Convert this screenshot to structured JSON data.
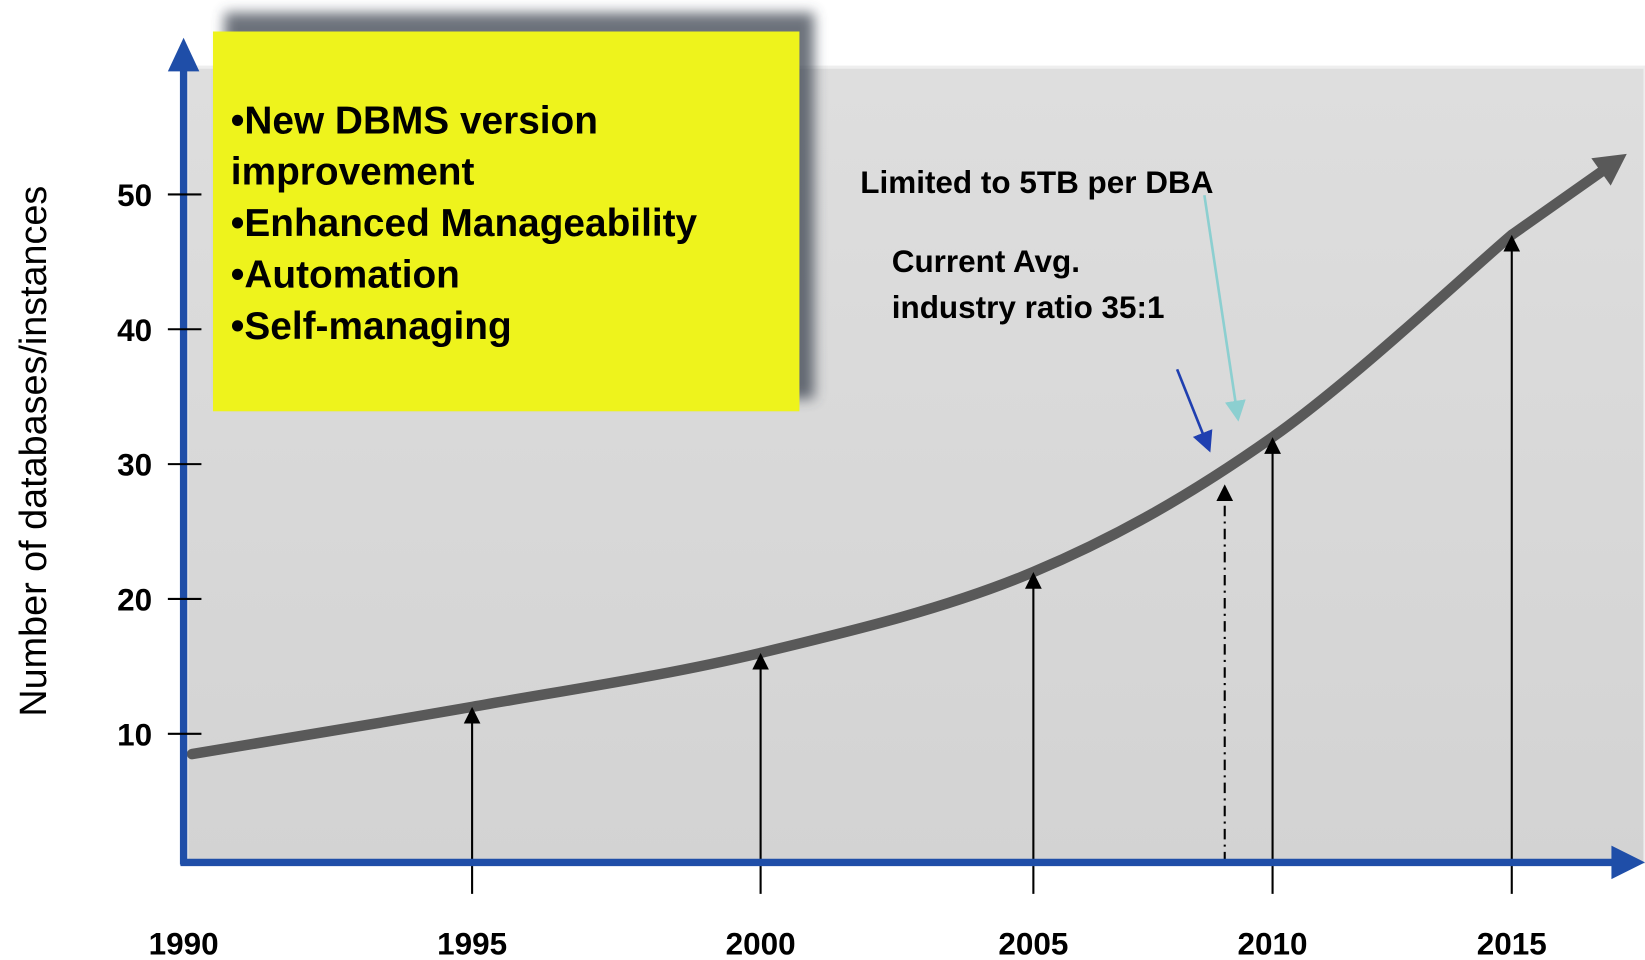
{
  "chart_data": {
    "type": "line",
    "y_label": "Number of databases/instances",
    "categories": [
      "1990",
      "1995",
      "2000",
      "2005",
      "2010",
      "2015"
    ],
    "values": [
      8.5,
      12,
      16,
      22,
      32,
      47
    ],
    "color": "#595959",
    "ylim": [
      0,
      55
    ],
    "yticks": [
      10,
      20,
      30,
      40,
      50
    ],
    "current_marker": 28.5,
    "callout": [
      "•New DBMS version",
      "improvement",
      "•Enhanced Manageability",
      "•Automation",
      "•Self-managing"
    ],
    "annotations": [
      "Limited to 5TB per DBA",
      "Current Avg.",
      "industry ratio 35:1"
    ]
  }
}
